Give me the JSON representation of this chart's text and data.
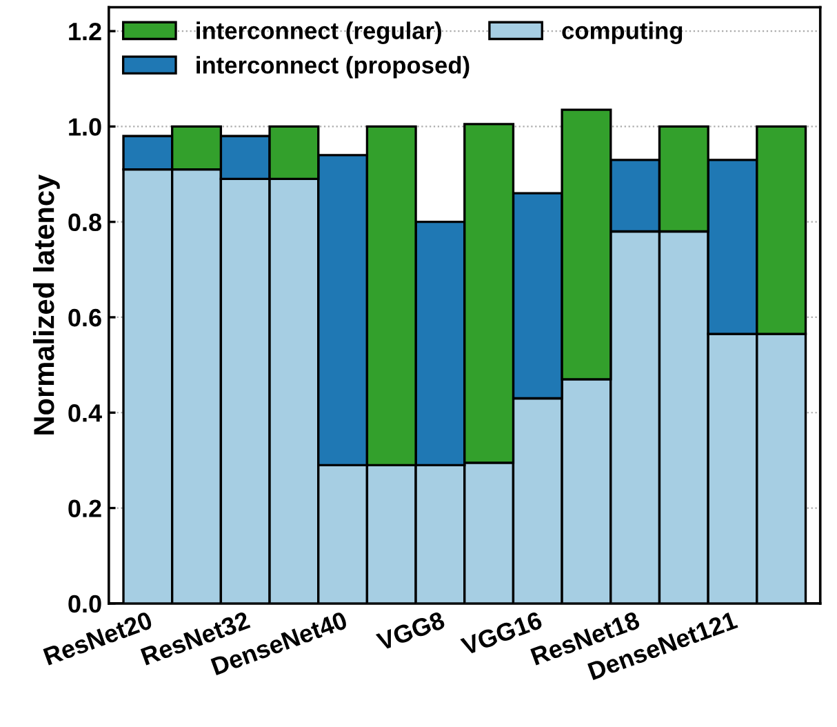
{
  "chart_data": {
    "type": "bar",
    "ylabel": "Normalized latency",
    "stacked": true,
    "categories": [
      "ResNet20",
      null,
      "ResNet32",
      null,
      "DenseNet40",
      null,
      "VGG8",
      null,
      "VGG16",
      null,
      "ResNet18",
      null,
      "DenseNet121",
      null
    ],
    "series": [
      {
        "name": "computing",
        "color": "#a6cee3",
        "values": [
          0.91,
          0.91,
          0.89,
          0.89,
          0.29,
          0.29,
          0.29,
          0.295,
          0.43,
          0.47,
          0.78,
          0.78,
          0.565,
          0.565
        ]
      },
      {
        "name": "interconnect (proposed)",
        "color": "#1f78b4",
        "values": [
          0.07,
          null,
          0.09,
          null,
          0.65,
          null,
          0.51,
          null,
          0.43,
          null,
          0.15,
          null,
          0.365,
          null
        ]
      },
      {
        "name": "interconnect (regular)",
        "color": "#33a02c",
        "values": [
          null,
          0.09,
          null,
          0.11,
          null,
          0.71,
          null,
          0.71,
          null,
          0.565,
          null,
          0.22,
          null,
          0.435
        ]
      }
    ],
    "ylim": [
      0,
      1.25
    ],
    "yticks": [
      {
        "value": 0,
        "label": "0.0"
      },
      0.2,
      0.4,
      0.6,
      0.8,
      {
        "value": 1,
        "label": "1.0"
      },
      1.2
    ],
    "grid": "y",
    "legend": "top left"
  }
}
